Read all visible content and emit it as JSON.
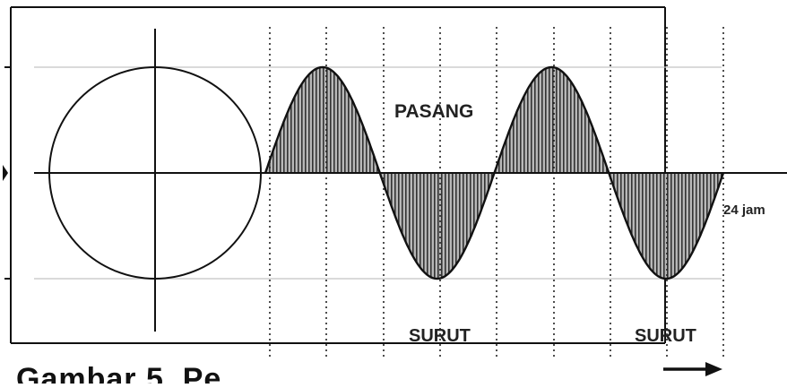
{
  "diagram": {
    "labels": {
      "high_tide": "PASANG",
      "low_tide_1": "SURUT",
      "low_tide_2": "SURUT",
      "duration": "24 jam"
    },
    "caption_partial": "Gambar 5. Pe",
    "colors": {
      "line": "#111111",
      "fill": "#9a9a9a",
      "grid": "#bdbdbd"
    }
  }
}
